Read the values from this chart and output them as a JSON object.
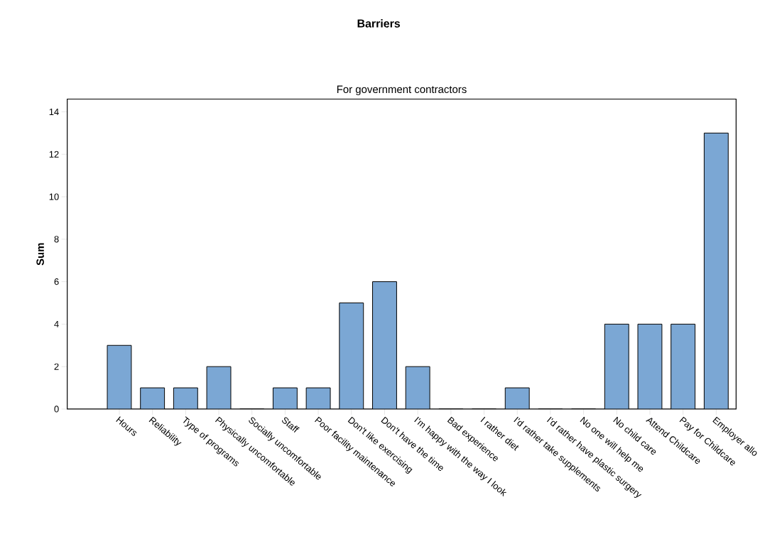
{
  "chart_data": {
    "type": "bar",
    "title": "Barriers",
    "subtitle": "For government contractors",
    "ylabel": "Sum",
    "categories": [
      "Hours",
      "Reliability",
      "Type of programs",
      "Physically uncomfortable",
      "Socially uncomfortable",
      "Staff",
      "Poor facility maintenance",
      "Don't like exercising",
      "Don't have the time",
      "I'm happy with the way I look",
      "Bad experience",
      "I rather diet",
      "I'd rather take supplements",
      "I'd rather have plastic surgery",
      "No one will help me",
      "No child care",
      "Attend Childcare",
      "Pay for Childcare",
      "Employer allo"
    ],
    "values": [
      3,
      1,
      1,
      2,
      0,
      1,
      1,
      5,
      6,
      2,
      0,
      0,
      1,
      0,
      0,
      4,
      4,
      4,
      13
    ],
    "color": "#7ba7d4",
    "ylim": [
      0,
      14.6
    ],
    "yticks": [
      0,
      2,
      4,
      6,
      8,
      10,
      12,
      14
    ]
  }
}
